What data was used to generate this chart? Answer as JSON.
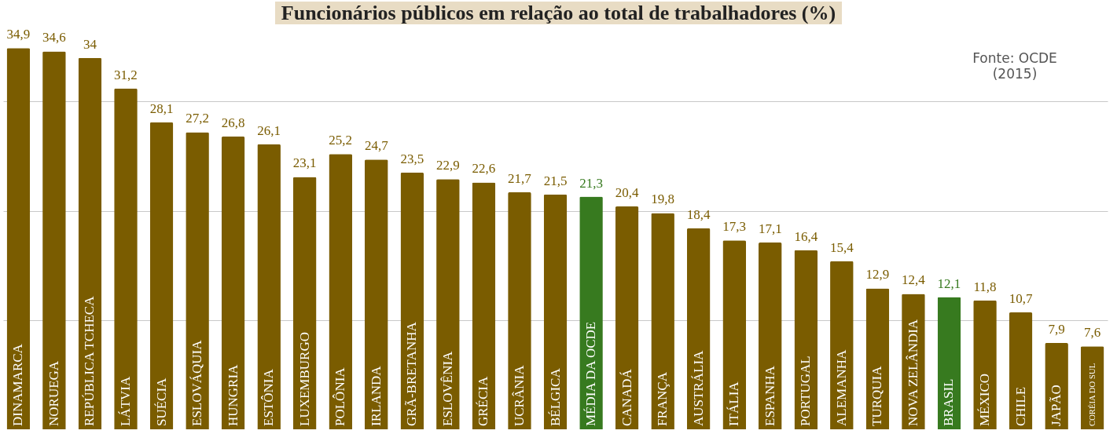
{
  "chart_data": {
    "type": "bar",
    "title": "Funcionários públicos em relação ao total de trabalhadores (%)",
    "annotations": [
      "Fonte: OCDE (2015)"
    ],
    "categories": [
      "DINAMARCA",
      "NORUEGA",
      "REPÚBLICA TCHECA",
      "LÁTVIA",
      "SUÉCIA",
      "ESLOVÁQUIA",
      "HUNGRIA",
      "ESTÔNIA",
      "LUXEMBURGO",
      "POLÔNIA",
      "IRLANDA",
      "GRÃ-BRETANHA",
      "ESLOVÊNIA",
      "GRÉCIA",
      "UCRÂNIA",
      "BÉLGICA",
      "MÉDIA DA OCDE",
      "CANADÁ",
      "FRANÇA",
      "AUSTRÁLIA",
      "ITÁLIA",
      "ESPANHA",
      "PORTUGAL",
      "ALEMANHA",
      "TURQUIA",
      "NOVA ZELÂNDIA",
      "BRASIL",
      "MÉXICO",
      "CHILE",
      "JAPÃO",
      "CORÉIA DO SUL"
    ],
    "values": [
      34.9,
      34.6,
      34,
      31.2,
      28.1,
      27.2,
      26.8,
      26.1,
      23.1,
      25.2,
      24.7,
      23.5,
      22.9,
      22.6,
      21.7,
      21.5,
      21.3,
      20.4,
      19.8,
      18.4,
      17.3,
      17.1,
      16.4,
      15.4,
      12.9,
      12.4,
      12.1,
      11.8,
      10.7,
      7.9,
      7.6
    ],
    "value_labels": [
      "34,9",
      "34,6",
      "34",
      "31,2",
      "28,1",
      "27,2",
      "26,8",
      "26,1",
      "23,1",
      "25,2",
      "24,7",
      "23,5",
      "22,9",
      "22,6",
      "21,7",
      "21,5",
      "21,3",
      "20,4",
      "19,8",
      "18,4",
      "17,3",
      "17,1",
      "16,4",
      "15,4",
      "12,9",
      "12,4",
      "12,1",
      "11,8",
      "10,7",
      "7,9",
      "7,6"
    ],
    "colors": [
      "#7a5c00",
      "#7a5c00",
      "#7a5c00",
      "#7a5c00",
      "#7a5c00",
      "#7a5c00",
      "#7a5c00",
      "#7a5c00",
      "#7a5c00",
      "#7a5c00",
      "#7a5c00",
      "#7a5c00",
      "#7a5c00",
      "#7a5c00",
      "#7a5c00",
      "#7a5c00",
      "#377a1f",
      "#7a5c00",
      "#7a5c00",
      "#7a5c00",
      "#7a5c00",
      "#7a5c00",
      "#7a5c00",
      "#7a5c00",
      "#7a5c00",
      "#7a5c00",
      "#377a1f",
      "#7a5c00",
      "#7a5c00",
      "#7a5c00",
      "#7a5c00"
    ],
    "ylim": [
      0,
      37
    ],
    "yticks": [
      {
        "value": 10,
        "label": null
      },
      {
        "value": 20,
        "label": null
      },
      {
        "value": 30,
        "label": null
      }
    ],
    "grid": "y",
    "tick_labels": "x"
  }
}
